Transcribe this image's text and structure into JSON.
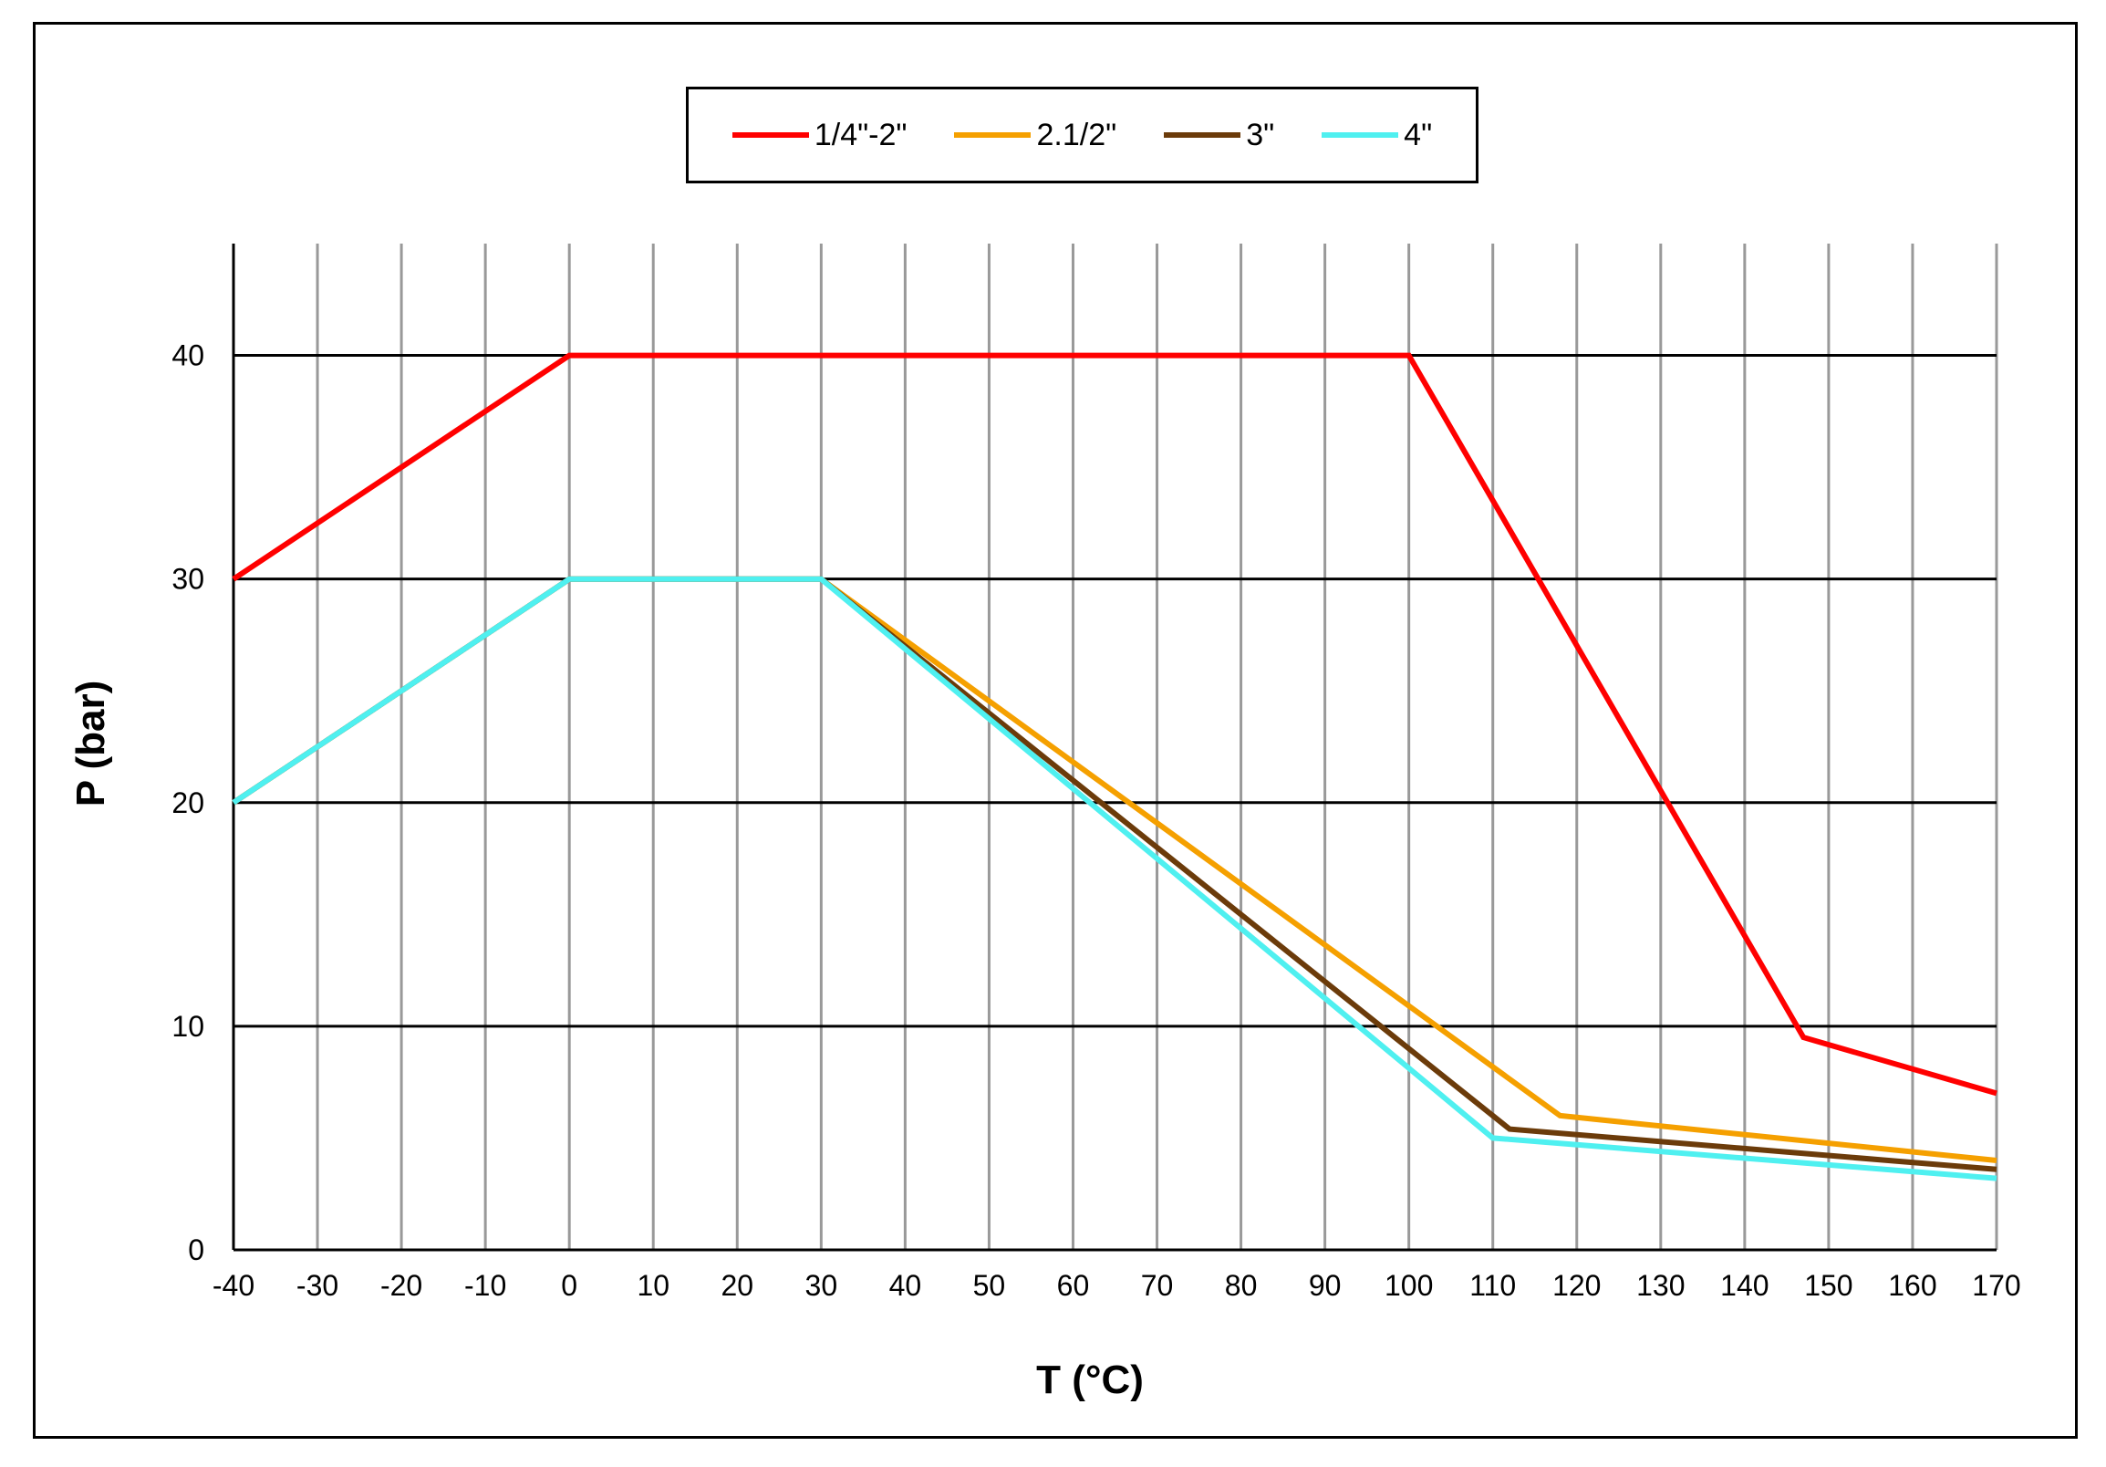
{
  "chart_data": {
    "type": "line",
    "xlabel": "T (°C)",
    "ylabel": "P (bar)",
    "xlim": [
      -40,
      170
    ],
    "ylim": [
      0,
      45
    ],
    "x_ticks": [
      "-40",
      "-30",
      "-20",
      "-10",
      "0",
      "10",
      "20",
      "30",
      "40",
      "50",
      "60",
      "70",
      "80",
      "90",
      "100",
      "110",
      "120",
      "130",
      "140",
      "150",
      "160",
      "170"
    ],
    "y_ticks": [
      "0",
      "10",
      "20",
      "30",
      "40"
    ],
    "grid": true,
    "legend_position": "top-center",
    "series": [
      {
        "name": "1/4\"-2\"",
        "color": "#ff0000",
        "points": [
          [
            -40,
            30
          ],
          [
            0,
            40
          ],
          [
            100,
            40
          ],
          [
            147,
            9.5
          ],
          [
            170,
            7
          ]
        ]
      },
      {
        "name": "2.1/2\"",
        "color": "#f5a000",
        "points": [
          [
            -40,
            20
          ],
          [
            0,
            30
          ],
          [
            30,
            30
          ],
          [
            118,
            6
          ],
          [
            170,
            4
          ]
        ]
      },
      {
        "name": "3\"",
        "color": "#6b3b0a",
        "points": [
          [
            -40,
            20
          ],
          [
            0,
            30
          ],
          [
            30,
            30
          ],
          [
            112,
            5.4
          ],
          [
            170,
            3.6
          ]
        ]
      },
      {
        "name": "4\"",
        "color": "#4ff0f0",
        "points": [
          [
            -40,
            20
          ],
          [
            0,
            30
          ],
          [
            30,
            30
          ],
          [
            110,
            5
          ],
          [
            170,
            3.2
          ]
        ]
      }
    ]
  }
}
